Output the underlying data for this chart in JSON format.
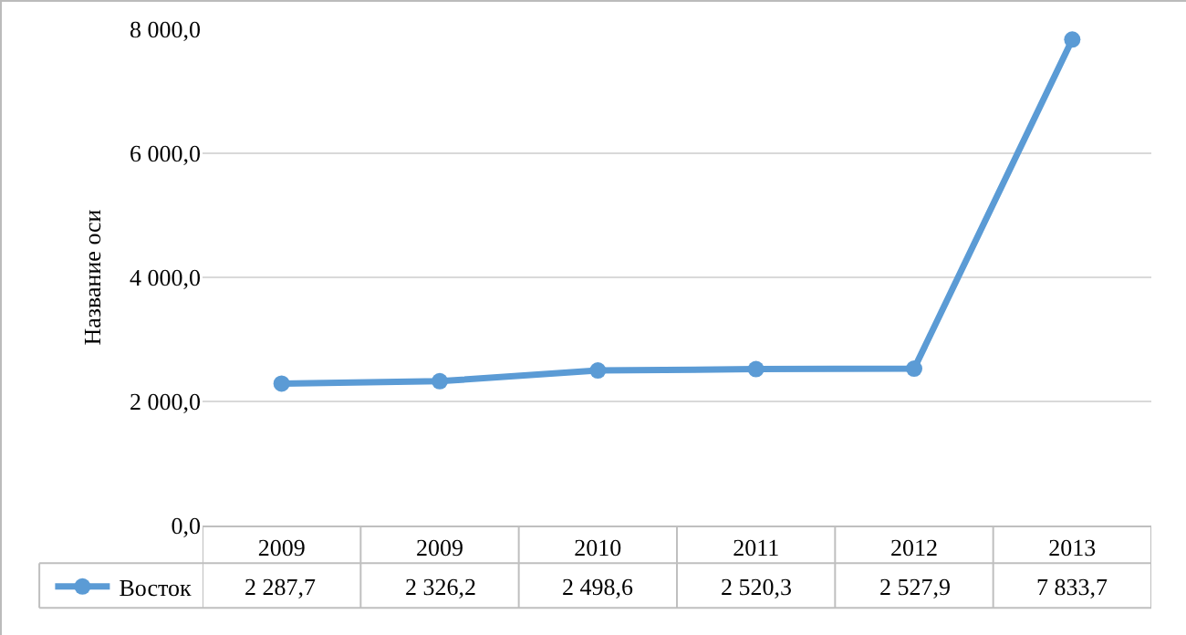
{
  "chart_data": {
    "type": "line",
    "ylabel": "Название оси",
    "categories": [
      "2009",
      "2009",
      "2010",
      "2011",
      "2012",
      "2013"
    ],
    "series": [
      {
        "name": "Восток",
        "color": "#5b9bd5",
        "values": [
          2287.7,
          2326.2,
          2498.6,
          2520.3,
          2527.9,
          7833.7
        ],
        "value_labels": [
          "2 287,7",
          "2 326,2",
          "2 498,6",
          "2 520,3",
          "2 527,9",
          "7 833,7"
        ]
      }
    ],
    "ylim": [
      0,
      8000
    ],
    "yticks": [
      {
        "value": 0,
        "label": "0,0"
      },
      {
        "value": 2000,
        "label": "2 000,0"
      },
      {
        "value": 4000,
        "label": "4 000,0"
      },
      {
        "value": 6000,
        "label": "6 000,0"
      },
      {
        "value": 8000,
        "label": "8 000,0"
      }
    ],
    "grid": "y",
    "legend": "bottom",
    "marker": "circle",
    "line_style": "solid",
    "data_labels": true
  }
}
